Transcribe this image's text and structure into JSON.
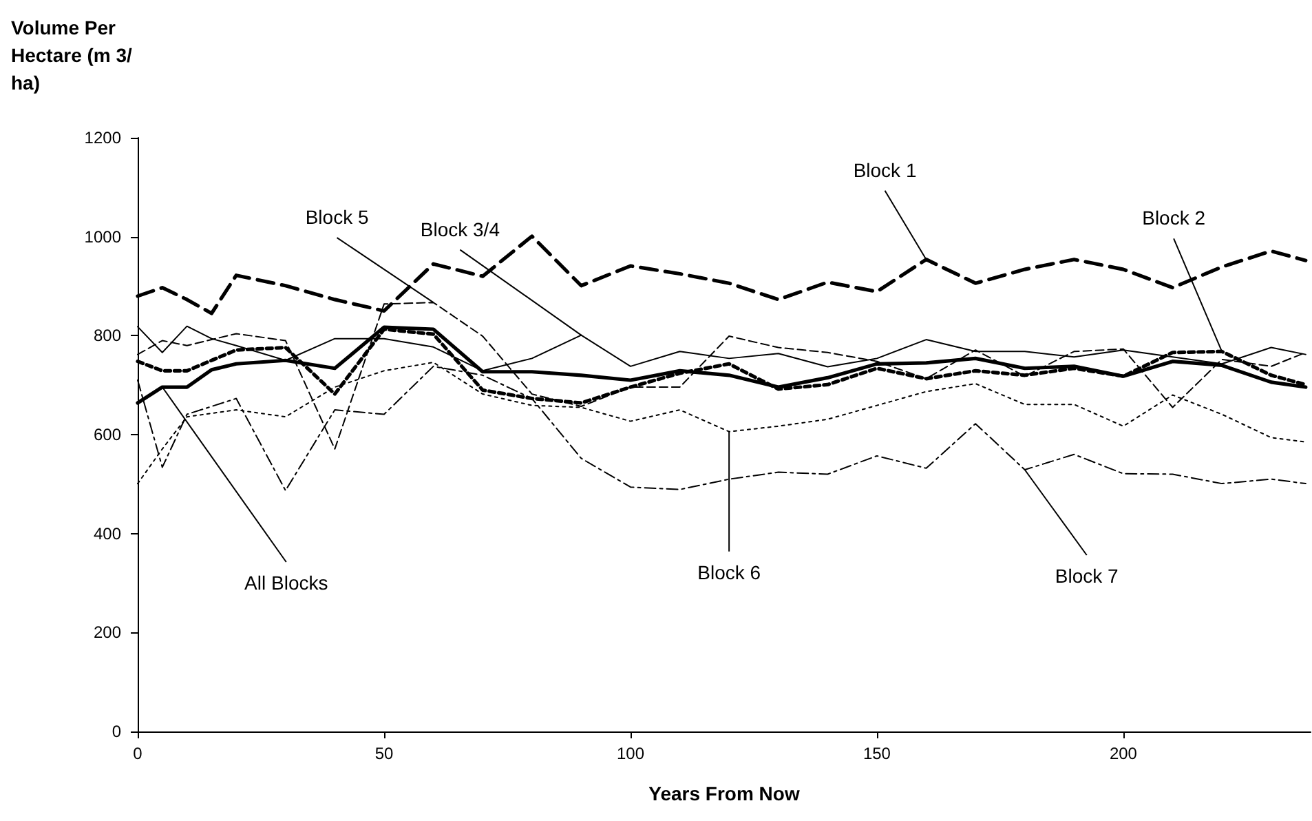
{
  "chart_data": {
    "type": "line",
    "xlabel": "Years From Now",
    "ylabel": "Volume Per Hectare (m 3/ha)",
    "x": [
      0,
      5,
      10,
      20,
      30,
      40,
      50,
      60,
      70,
      80,
      90,
      100,
      110,
      120,
      130,
      140,
      150,
      160,
      170,
      180,
      190,
      200,
      210,
      220,
      230,
      237
    ],
    "series": [
      {
        "name": "Block 1",
        "color": "#000000",
        "line_style": "dashed",
        "x": [
          0,
          5,
          10,
          15,
          20,
          30,
          40,
          50,
          60,
          70,
          80,
          90,
          100,
          110,
          120,
          130,
          140,
          150,
          160,
          170,
          180,
          190,
          200,
          210,
          220,
          230,
          237
        ],
        "values": [
          880,
          897,
          873,
          845,
          922,
          901,
          873,
          850,
          945,
          920,
          1001,
          901,
          941,
          925,
          906,
          873,
          908,
          889,
          954,
          906,
          934,
          954,
          934,
          897,
          939,
          971,
          952
        ]
      },
      {
        "name": "Block 2",
        "color": "#000000",
        "line_style": "dashed",
        "values": [
          748,
          729,
          729,
          771,
          776,
          682,
          813,
          803,
          690,
          673,
          664,
          696,
          724,
          743,
          692,
          701,
          734,
          713,
          729,
          720,
          734,
          718,
          766,
          768,
          720,
          701
        ]
      },
      {
        "name": "Block 3/4",
        "color": "#000000",
        "line_style": "solid",
        "x": [
          0,
          5,
          10,
          15,
          20,
          30,
          40,
          50,
          60,
          70,
          80,
          90,
          100,
          110,
          120,
          130,
          140,
          150,
          160,
          170,
          180,
          190,
          200,
          210,
          220,
          230,
          237
        ],
        "values": [
          818,
          766,
          819,
          794,
          780,
          750,
          794,
          794,
          777,
          729,
          754,
          801,
          738,
          768,
          754,
          764,
          737,
          754,
          792,
          768,
          768,
          757,
          771,
          757,
          743,
          776,
          762
        ]
      },
      {
        "name": "Block 5",
        "color": "#000000",
        "line_style": "dashed",
        "values": [
          762,
          790,
          780,
          804,
          790,
          571,
          864,
          867,
          799,
          682,
          657,
          696,
          696,
          799,
          776,
          766,
          748,
          713,
          771,
          718,
          768,
          773,
          655,
          752,
          738,
          766
        ]
      },
      {
        "name": "Block 6",
        "color": "#000000",
        "line_style": "dotted",
        "values": [
          501,
          571,
          636,
          650,
          636,
          696,
          729,
          746,
          682,
          659,
          655,
          627,
          650,
          606,
          617,
          631,
          659,
          687,
          703,
          661,
          661,
          617,
          680,
          641,
          594,
          585
        ]
      },
      {
        "name": "Block 7",
        "color": "#000000",
        "line_style": "dashdot",
        "values": [
          710,
          534,
          641,
          673,
          487,
          650,
          641,
          738,
          720,
          673,
          552,
          494,
          489,
          510,
          524,
          520,
          557,
          532,
          622,
          529,
          560,
          521,
          520,
          501,
          510,
          501
        ]
      },
      {
        "name": "All Blocks",
        "color": "#000000",
        "line_style": "solid",
        "x": [
          0,
          5,
          10,
          15,
          20,
          30,
          40,
          50,
          60,
          70,
          80,
          90,
          100,
          110,
          120,
          130,
          140,
          150,
          160,
          170,
          180,
          190,
          200,
          210,
          220,
          230,
          237
        ],
        "values": [
          664,
          696,
          696,
          731,
          743,
          750,
          734,
          817,
          813,
          727,
          727,
          720,
          710,
          729,
          720,
          696,
          715,
          743,
          745,
          754,
          734,
          738,
          718,
          748,
          740,
          706,
          696
        ]
      }
    ],
    "xlim": [
      0,
      238
    ],
    "xticks": [
      0,
      50,
      100,
      150,
      200
    ],
    "ylim": [
      0,
      1200
    ],
    "yticks": [
      0,
      200,
      400,
      600,
      800,
      1000,
      1200
    ],
    "grid": false,
    "legend": false
  }
}
